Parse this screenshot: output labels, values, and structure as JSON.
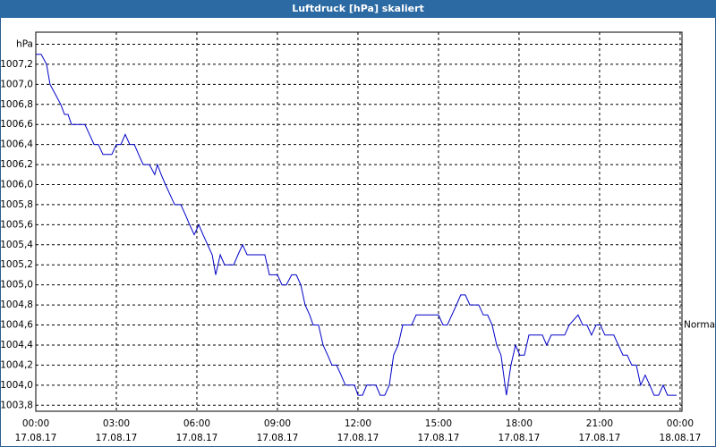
{
  "chart_data": {
    "type": "line",
    "title": "Luftdruck [hPa] skaliert",
    "x": [
      0,
      0.2,
      0.4,
      0.53,
      0.73,
      0.93,
      1.07,
      1.2,
      1.33,
      1.83,
      2,
      2.17,
      2.33,
      2.5,
      2.83,
      3,
      3.17,
      3.33,
      3.5,
      3.67,
      3.83,
      4,
      4.23,
      4.43,
      4.53,
      4.67,
      4.83,
      5,
      5.17,
      5.4,
      5.57,
      5.73,
      5.9,
      6.07,
      6.23,
      6.4,
      6.57,
      6.7,
      6.87,
      7.03,
      7.37,
      7.53,
      7.7,
      7.87,
      8.53,
      8.7,
      9,
      9.17,
      9.33,
      9.53,
      9.7,
      9.87,
      10.03,
      10.2,
      10.33,
      10.53,
      10.7,
      10.87,
      11.03,
      11.2,
      11.37,
      11.53,
      11.87,
      12,
      12.17,
      12.33,
      12.67,
      12.83,
      13,
      13.17,
      13.33,
      13.5,
      13.67,
      14,
      14.17,
      15,
      15.17,
      15.33,
      15.5,
      15.67,
      15.83,
      16,
      16.17,
      16.5,
      16.67,
      16.83,
      17,
      17.17,
      17.33,
      17.53,
      17.7,
      17.87,
      18.03,
      18.2,
      18.37,
      18.87,
      19.03,
      19.2,
      19.7,
      19.87,
      20.2,
      20.37,
      20.53,
      20.7,
      20.87,
      21.03,
      21.2,
      21.53,
      21.7,
      21.87,
      22.03,
      22.2,
      22.37,
      22.53,
      22.7,
      22.87,
      23.03,
      23.2,
      23.37,
      23.53,
      23.87
    ],
    "series": [
      {
        "name": "Luftdruck",
        "color": "#0000c8",
        "values": [
          1007.3,
          1007.3,
          1007.2,
          1007.0,
          1006.9,
          1006.8,
          1006.7,
          1006.7,
          1006.6,
          1006.6,
          1006.5,
          1006.4,
          1006.4,
          1006.3,
          1006.3,
          1006.4,
          1006.4,
          1006.5,
          1006.4,
          1006.4,
          1006.3,
          1006.2,
          1006.2,
          1006.1,
          1006.2,
          1006.1,
          1006.0,
          1005.9,
          1005.8,
          1005.8,
          1005.7,
          1005.6,
          1005.5,
          1005.6,
          1005.5,
          1005.4,
          1005.3,
          1005.1,
          1005.3,
          1005.2,
          1005.2,
          1005.3,
          1005.4,
          1005.3,
          1005.3,
          1005.1,
          1005.1,
          1005.0,
          1005.0,
          1005.1,
          1005.1,
          1005.0,
          1004.8,
          1004.7,
          1004.6,
          1004.6,
          1004.4,
          1004.3,
          1004.2,
          1004.2,
          1004.1,
          1004.0,
          1004.0,
          1003.9,
          1003.9,
          1004.0,
          1004.0,
          1003.9,
          1003.9,
          1004.0,
          1004.3,
          1004.4,
          1004.6,
          1004.6,
          1004.7,
          1004.7,
          1004.6,
          1004.6,
          1004.7,
          1004.8,
          1004.9,
          1004.9,
          1004.8,
          1004.8,
          1004.7,
          1004.7,
          1004.6,
          1004.4,
          1004.3,
          1003.9,
          1004.2,
          1004.4,
          1004.3,
          1004.3,
          1004.5,
          1004.5,
          1004.4,
          1004.5,
          1004.5,
          1004.6,
          1004.7,
          1004.6,
          1004.6,
          1004.5,
          1004.6,
          1004.6,
          1004.5,
          1004.5,
          1004.4,
          1004.3,
          1004.3,
          1004.2,
          1004.2,
          1004.0,
          1004.1,
          1004.0,
          1003.9,
          1003.9,
          1004.0,
          1003.9,
          1003.9
        ]
      }
    ],
    "xlim": [
      0,
      24.07
    ],
    "ylim": [
      1003.74,
      1007.52
    ],
    "xticks": [
      {
        "value": 0,
        "label": "00:00 17.08.17"
      },
      {
        "value": 3,
        "label": "03:00 17.08.17"
      },
      {
        "value": 6,
        "label": "06:00 17.08.17"
      },
      {
        "value": 9,
        "label": "09:00 17.08.17"
      },
      {
        "value": 12,
        "label": "12:00 17.08.17"
      },
      {
        "value": 15,
        "label": "15:00 17.08.17"
      },
      {
        "value": 18,
        "label": "18:00 17.08.17"
      },
      {
        "value": 21,
        "label": "21:00 17.08.17"
      },
      {
        "value": 24,
        "label": "00:00 18.08.17"
      }
    ],
    "yticks": [
      {
        "value": 1003.8,
        "label": "1003,8"
      },
      {
        "value": 1004.0,
        "label": "1004,0"
      },
      {
        "value": 1004.2,
        "label": "1004,2"
      },
      {
        "value": 1004.4,
        "label": "1004,4"
      },
      {
        "value": 1004.6,
        "label": "1004,6"
      },
      {
        "value": 1004.8,
        "label": "1004,8"
      },
      {
        "value": 1005.0,
        "label": "1005,0"
      },
      {
        "value": 1005.2,
        "label": "1005,2"
      },
      {
        "value": 1005.4,
        "label": "1005,4"
      },
      {
        "value": 1005.6,
        "label": "1005,6"
      },
      {
        "value": 1005.8,
        "label": "1005,8"
      },
      {
        "value": 1006.0,
        "label": "1006,0"
      },
      {
        "value": 1006.2,
        "label": "1006,2"
      },
      {
        "value": 1006.4,
        "label": "1006,4"
      },
      {
        "value": 1006.6,
        "label": "1006,6"
      },
      {
        "value": 1006.8,
        "label": "1006,8"
      },
      {
        "value": 1007.0,
        "label": "1007,0"
      },
      {
        "value": 1007.2,
        "label": "1007,2"
      },
      {
        "value": 1007.4,
        "label": "hPa"
      }
    ],
    "reference": {
      "value": 1004.6,
      "label": "Normal"
    },
    "grid": true
  }
}
